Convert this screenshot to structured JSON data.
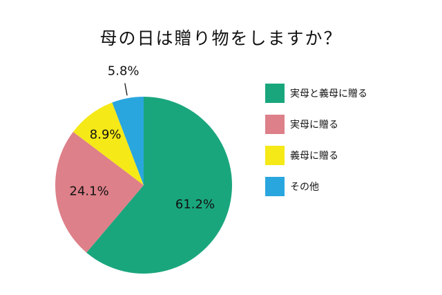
{
  "chart_data": {
    "type": "pie",
    "title": "母の日は贈り物をしますか？",
    "slices": [
      {
        "label": "実母と義母に贈る",
        "value": 61.2,
        "value_label": "61.2%",
        "color": "#1aa67d"
      },
      {
        "label": "実母に贈る",
        "value": 24.1,
        "value_label": "24.1%",
        "color": "#dd8089"
      },
      {
        "label": "義母に贈る",
        "value": 8.9,
        "value_label": "8.9%",
        "color": "#f5e918"
      },
      {
        "label": "その他",
        "value": 5.8,
        "value_label": "5.8%",
        "color": "#2aa6df"
      }
    ],
    "legend_position": "right",
    "start": "top",
    "direction": "clockwise"
  }
}
